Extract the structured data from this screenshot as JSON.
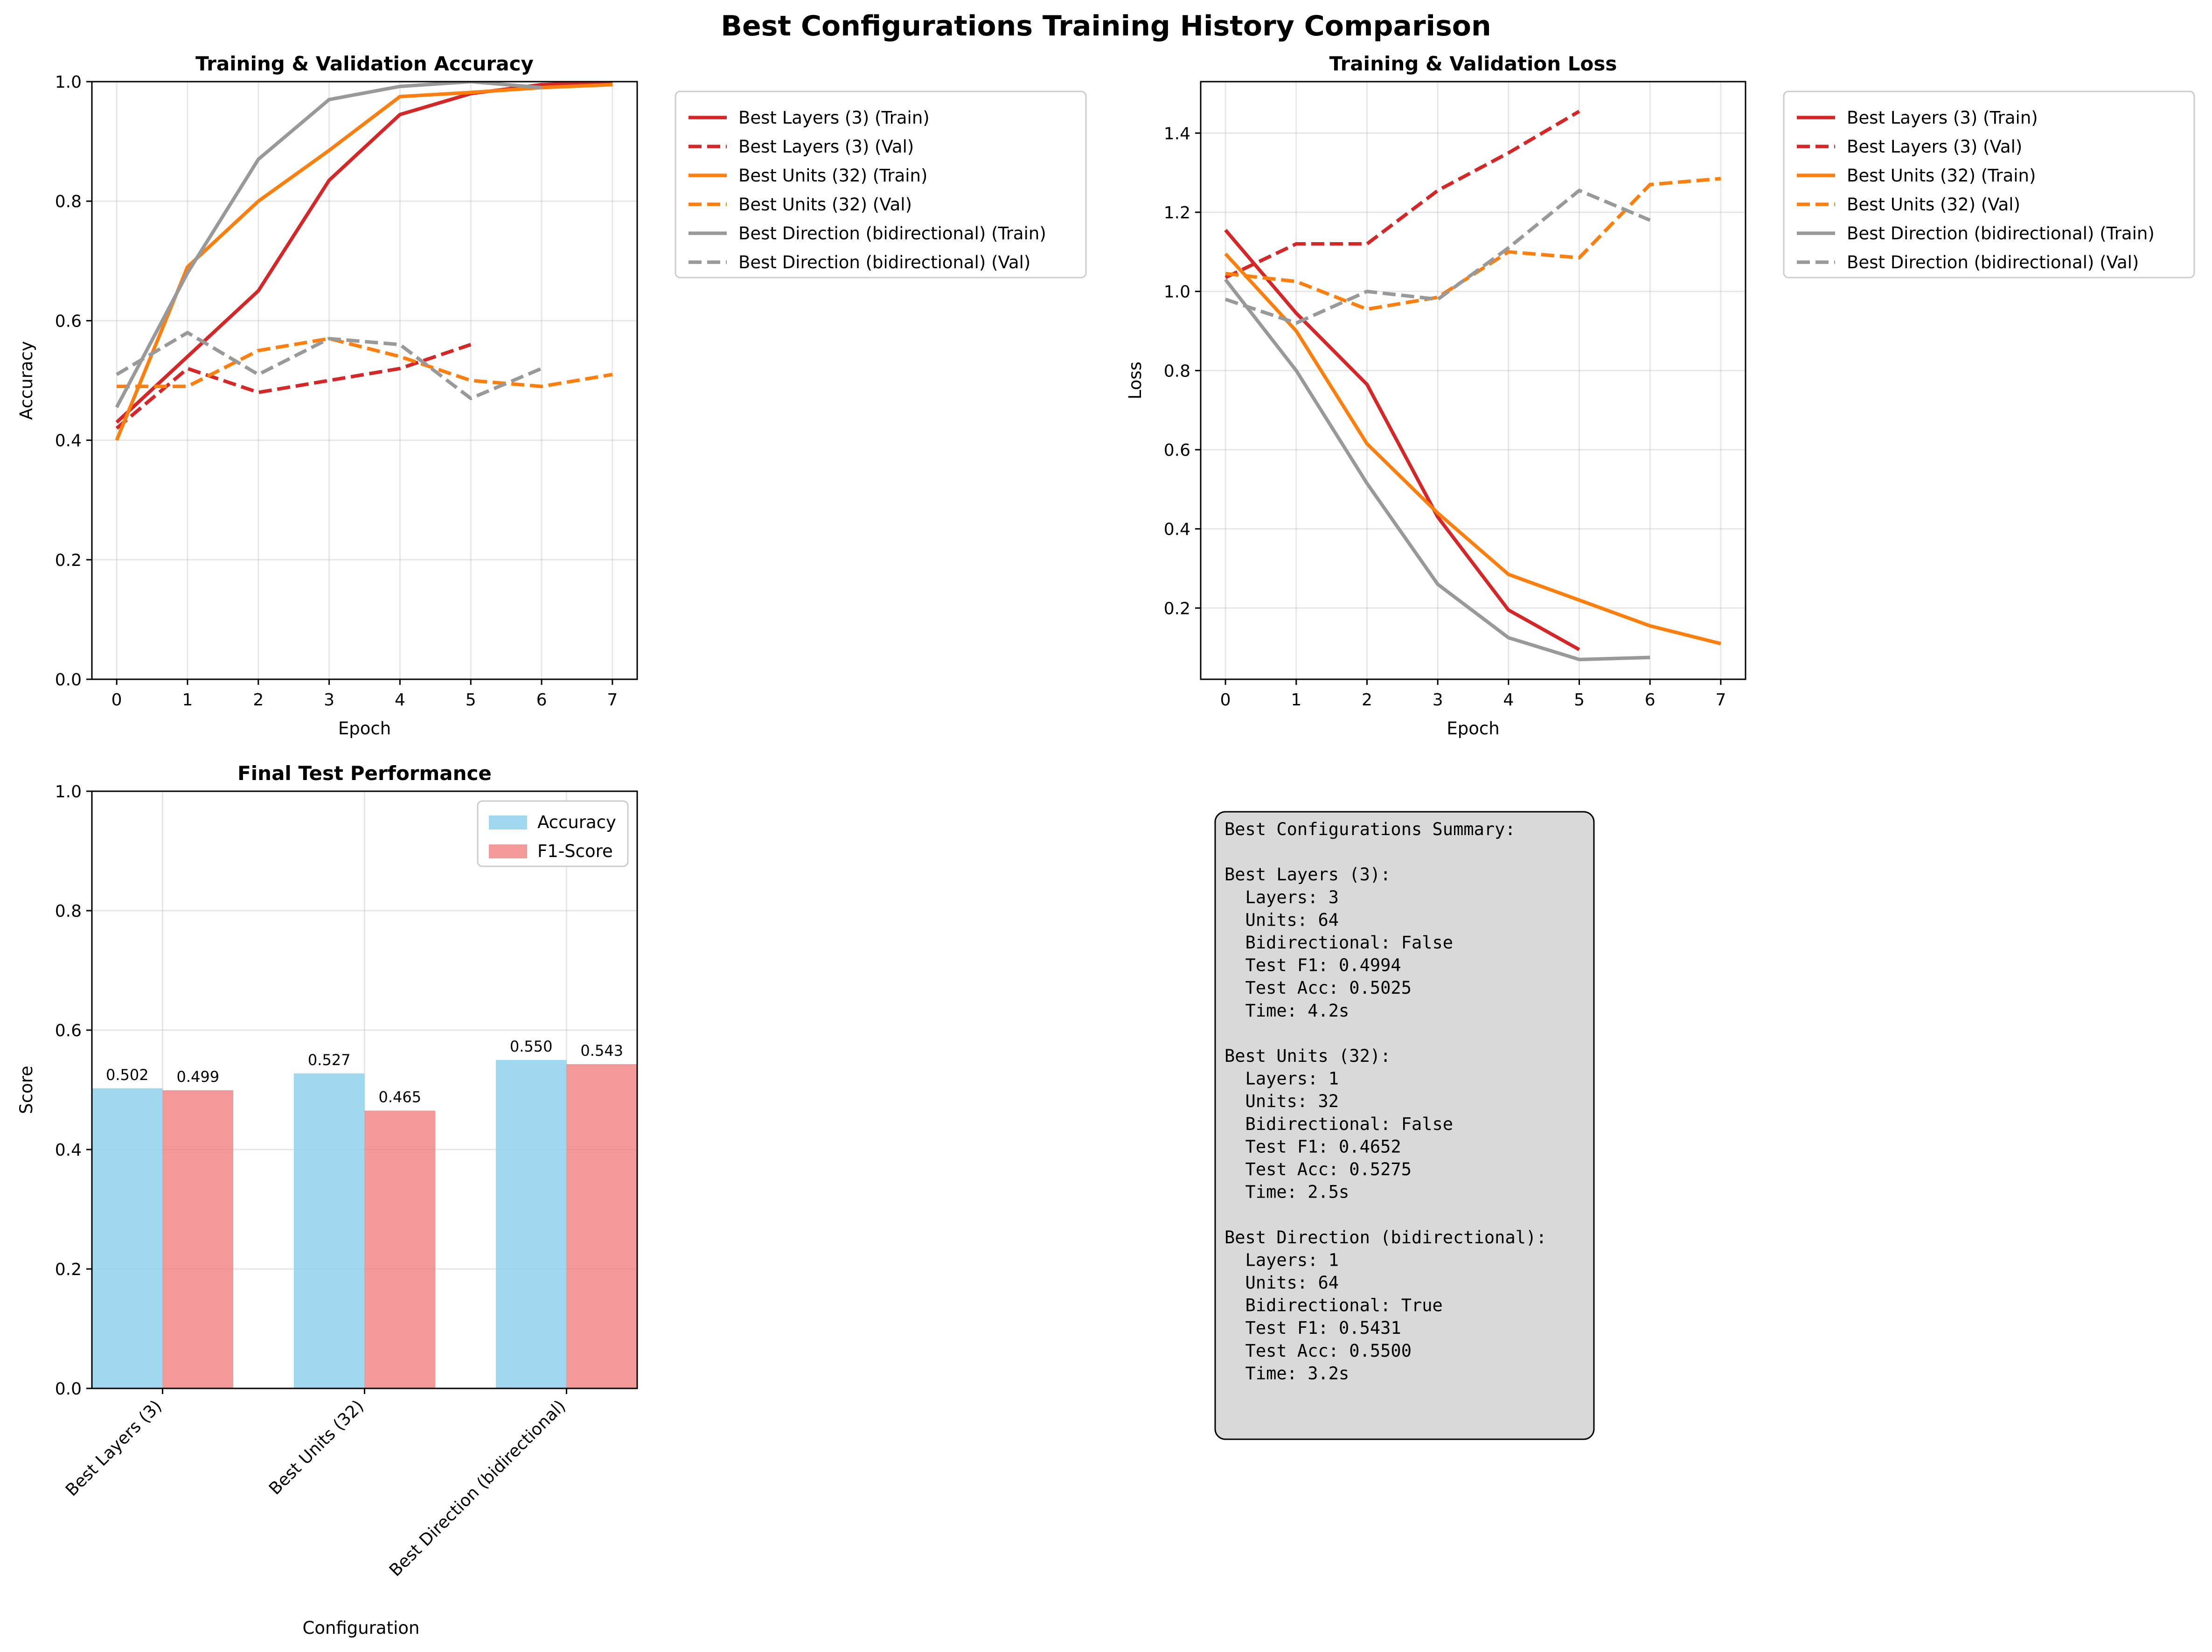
{
  "figure": {
    "title": "Best Configurations Training History Comparison"
  },
  "colors": {
    "layers": "#d62728",
    "units": "#ff7f0e",
    "direction": "#999999",
    "accuracy_bar": "#87ceeb",
    "f1_bar": "#f08080",
    "summary_bg": "#d9d9d9"
  },
  "chart_data": [
    {
      "type": "line",
      "title": "Training & Validation Accuracy",
      "xlabel": "Epoch",
      "ylabel": "Accuracy",
      "xlim": [
        -0.35,
        7.35
      ],
      "ylim": [
        0.0,
        1.0
      ],
      "xticks": [
        "0",
        "1",
        "2",
        "3",
        "4",
        "5",
        "6",
        "7"
      ],
      "yticks": [
        "0.0",
        "0.2",
        "0.4",
        "0.6",
        "0.8",
        "1.0"
      ],
      "grid": true,
      "legend": "outside-right",
      "series": [
        {
          "name": "Best Layers (3) (Train)",
          "color": "#d62728",
          "dashed": false,
          "x": [
            0,
            1,
            2,
            3,
            4,
            5,
            6,
            7
          ],
          "y": [
            0.43,
            0.54,
            0.65,
            0.835,
            0.945,
            0.98,
            0.995,
            1.0
          ]
        },
        {
          "name": "Best Layers (3) (Val)",
          "color": "#d62728",
          "dashed": true,
          "x": [
            0,
            1,
            2,
            3,
            4,
            5
          ],
          "y": [
            0.42,
            0.52,
            0.48,
            0.5,
            0.52,
            0.56
          ]
        },
        {
          "name": "Best Units (32) (Train)",
          "color": "#ff7f0e",
          "dashed": false,
          "x": [
            0,
            1,
            2,
            3,
            4,
            5,
            6,
            7
          ],
          "y": [
            0.4,
            0.69,
            0.8,
            0.885,
            0.975,
            0.982,
            0.99,
            0.995
          ]
        },
        {
          "name": "Best Units (32) (Val)",
          "color": "#ff7f0e",
          "dashed": true,
          "x": [
            0,
            1,
            2,
            3,
            4,
            5,
            6,
            7
          ],
          "y": [
            0.49,
            0.49,
            0.55,
            0.57,
            0.54,
            0.5,
            0.49,
            0.51
          ]
        },
        {
          "name": "Best Direction (bidirectional) (Train)",
          "color": "#999999",
          "dashed": false,
          "x": [
            0,
            1,
            2,
            3,
            4,
            5,
            6
          ],
          "y": [
            0.455,
            0.68,
            0.87,
            0.97,
            0.992,
            1.0,
            0.99
          ]
        },
        {
          "name": "Best Direction (bidirectional) (Val)",
          "color": "#999999",
          "dashed": true,
          "x": [
            0,
            1,
            2,
            3,
            4,
            5,
            6
          ],
          "y": [
            0.51,
            0.58,
            0.51,
            0.57,
            0.56,
            0.47,
            0.52
          ]
        }
      ]
    },
    {
      "type": "line",
      "title": "Training & Validation Loss",
      "xlabel": "Epoch",
      "ylabel": "Loss",
      "xlim": [
        -0.35,
        7.35
      ],
      "ylim": [
        0.02,
        1.53
      ],
      "xticks": [
        "0",
        "1",
        "2",
        "3",
        "4",
        "5",
        "6",
        "7"
      ],
      "yticks": [
        "0.2",
        "0.4",
        "0.6",
        "0.8",
        "1.0",
        "1.2",
        "1.4"
      ],
      "grid": true,
      "legend": "outside-right",
      "series": [
        {
          "name": "Best Layers (3) (Train)",
          "color": "#d62728",
          "dashed": false,
          "x": [
            0,
            1,
            2,
            3,
            4,
            5
          ],
          "y": [
            1.155,
            0.945,
            0.765,
            0.43,
            0.195,
            0.095
          ]
        },
        {
          "name": "Best Layers (3) (Val)",
          "color": "#d62728",
          "dashed": true,
          "x": [
            0,
            1,
            2,
            3,
            4,
            5
          ],
          "y": [
            1.035,
            1.12,
            1.12,
            1.255,
            1.35,
            1.455
          ]
        },
        {
          "name": "Best Units (32) (Train)",
          "color": "#ff7f0e",
          "dashed": false,
          "x": [
            0,
            1,
            2,
            3,
            4,
            5,
            6,
            7
          ],
          "y": [
            1.095,
            0.9,
            0.615,
            0.44,
            0.285,
            0.22,
            0.155,
            0.11
          ]
        },
        {
          "name": "Best Units (32) (Val)",
          "color": "#ff7f0e",
          "dashed": true,
          "x": [
            0,
            1,
            2,
            3,
            4,
            5,
            6,
            7
          ],
          "y": [
            1.045,
            1.025,
            0.955,
            0.985,
            1.1,
            1.085,
            1.27,
            1.285
          ]
        },
        {
          "name": "Best Direction (bidirectional) (Train)",
          "color": "#999999",
          "dashed": false,
          "x": [
            0,
            1,
            2,
            3,
            4,
            5,
            6
          ],
          "y": [
            1.03,
            0.8,
            0.515,
            0.26,
            0.125,
            0.07,
            0.075
          ]
        },
        {
          "name": "Best Direction (bidirectional) (Val)",
          "color": "#999999",
          "dashed": true,
          "x": [
            0,
            1,
            2,
            3,
            4,
            5,
            6
          ],
          "y": [
            0.98,
            0.92,
            1.0,
            0.98,
            1.11,
            1.255,
            1.18
          ]
        }
      ]
    },
    {
      "type": "bar",
      "title": "Final Test Performance",
      "xlabel": "Configuration",
      "ylabel": "Score",
      "ylim": [
        0.0,
        1.0
      ],
      "yticks": [
        "0.0",
        "0.2",
        "0.4",
        "0.6",
        "0.8",
        "1.0"
      ],
      "grid": true,
      "legend": "top-right",
      "categories": [
        "Best Layers (3)",
        "Best Units (32)",
        "Best Direction (bidirectional)"
      ],
      "series": [
        {
          "name": "Accuracy",
          "color": "#87ceeb",
          "values": [
            0.5025,
            0.5275,
            0.55
          ],
          "labels": [
            "0.502",
            "0.527",
            "0.550"
          ]
        },
        {
          "name": "F1-Score",
          "color": "#f08080",
          "values": [
            0.4994,
            0.4652,
            0.5431
          ],
          "labels": [
            "0.499",
            "0.465",
            "0.543"
          ]
        }
      ]
    }
  ],
  "summary": {
    "lines": [
      "Best Configurations Summary:",
      "",
      "Best Layers (3):",
      "  Layers: 3",
      "  Units: 64",
      "  Bidirectional: False",
      "  Test F1: 0.4994",
      "  Test Acc: 0.5025",
      "  Time: 4.2s",
      "",
      "Best Units (32):",
      "  Layers: 1",
      "  Units: 32",
      "  Bidirectional: False",
      "  Test F1: 0.4652",
      "  Test Acc: 0.5275",
      "  Time: 2.5s",
      "",
      "Best Direction (bidirectional):",
      "  Layers: 1",
      "  Units: 64",
      "  Bidirectional: True",
      "  Test F1: 0.5431",
      "  Test Acc: 0.5500",
      "  Time: 3.2s"
    ]
  }
}
